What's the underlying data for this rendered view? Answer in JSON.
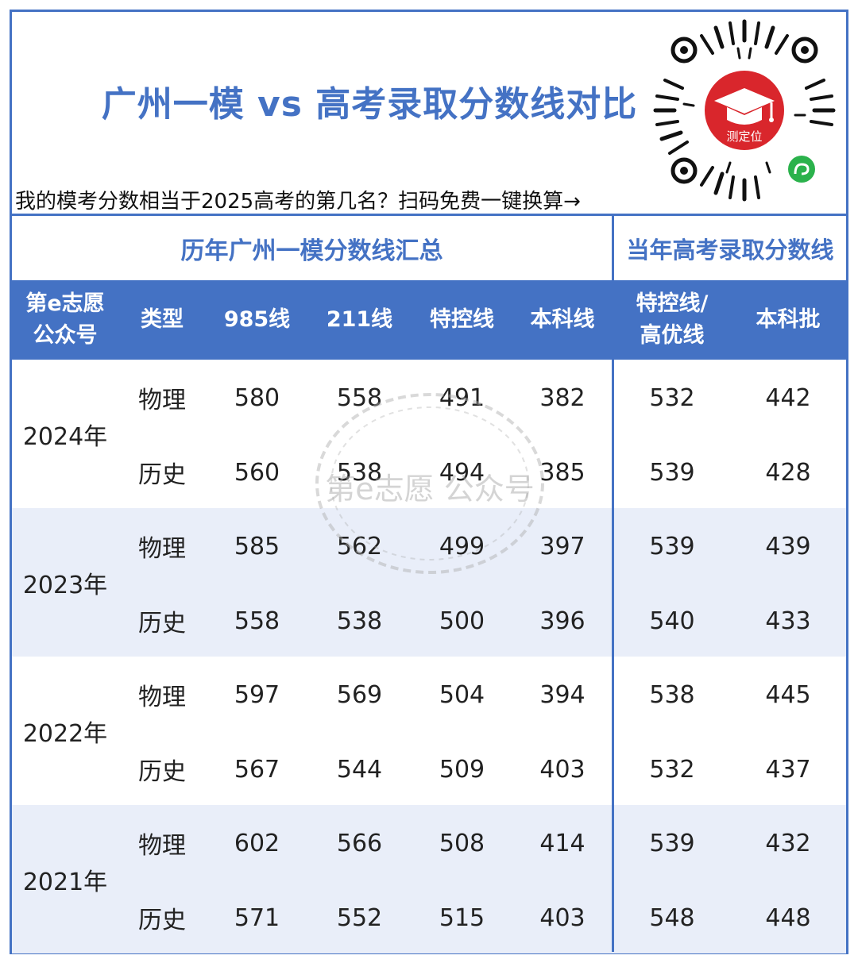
{
  "header": {
    "title": "广州一模 vs 高考录取分数线对比",
    "subtitle": "我的模考分数相当于2025高考的第几名？扫码免费一键换算→",
    "qr_label": "测定位"
  },
  "sections": {
    "left": "历年广州一模分数线汇总",
    "right": "当年高考录取分数线"
  },
  "columns": {
    "brand_line1": "第e志愿",
    "brand_line2": "公众号",
    "type": "类型",
    "c985": "985线",
    "c211": "211线",
    "special": "特控线",
    "undergrad": "本科线",
    "gk_special_line1": "特控线/",
    "gk_special_line2": "高优线",
    "gk_undergrad": "本科批"
  },
  "rows": [
    {
      "year": "2024年",
      "items": [
        {
          "type": "物理",
          "c985": "580",
          "c211": "558",
          "special": "491",
          "undergrad": "382",
          "gk_special": "532",
          "gk_undergrad": "442"
        },
        {
          "type": "历史",
          "c985": "560",
          "c211": "538",
          "special": "494",
          "undergrad": "385",
          "gk_special": "539",
          "gk_undergrad": "428"
        }
      ]
    },
    {
      "year": "2023年",
      "items": [
        {
          "type": "物理",
          "c985": "585",
          "c211": "562",
          "special": "499",
          "undergrad": "397",
          "gk_special": "539",
          "gk_undergrad": "439"
        },
        {
          "type": "历史",
          "c985": "558",
          "c211": "538",
          "special": "500",
          "undergrad": "396",
          "gk_special": "540",
          "gk_undergrad": "433"
        }
      ]
    },
    {
      "year": "2022年",
      "items": [
        {
          "type": "物理",
          "c985": "597",
          "c211": "569",
          "special": "504",
          "undergrad": "394",
          "gk_special": "538",
          "gk_undergrad": "445"
        },
        {
          "type": "历史",
          "c985": "567",
          "c211": "544",
          "special": "509",
          "undergrad": "403",
          "gk_special": "532",
          "gk_undergrad": "437"
        }
      ]
    },
    {
      "year": "2021年",
      "items": [
        {
          "type": "物理",
          "c985": "602",
          "c211": "566",
          "special": "508",
          "undergrad": "414",
          "gk_special": "539",
          "gk_undergrad": "432"
        },
        {
          "type": "历史",
          "c985": "571",
          "c211": "552",
          "special": "515",
          "undergrad": "403",
          "gk_special": "548",
          "gk_undergrad": "448"
        }
      ]
    }
  ],
  "watermark": "第e志愿 公众号",
  "colors": {
    "accent": "#4472c4",
    "row_shade": "#e9eef9",
    "qr_badge": "#d9262c",
    "qr_green": "#2bb24c"
  }
}
